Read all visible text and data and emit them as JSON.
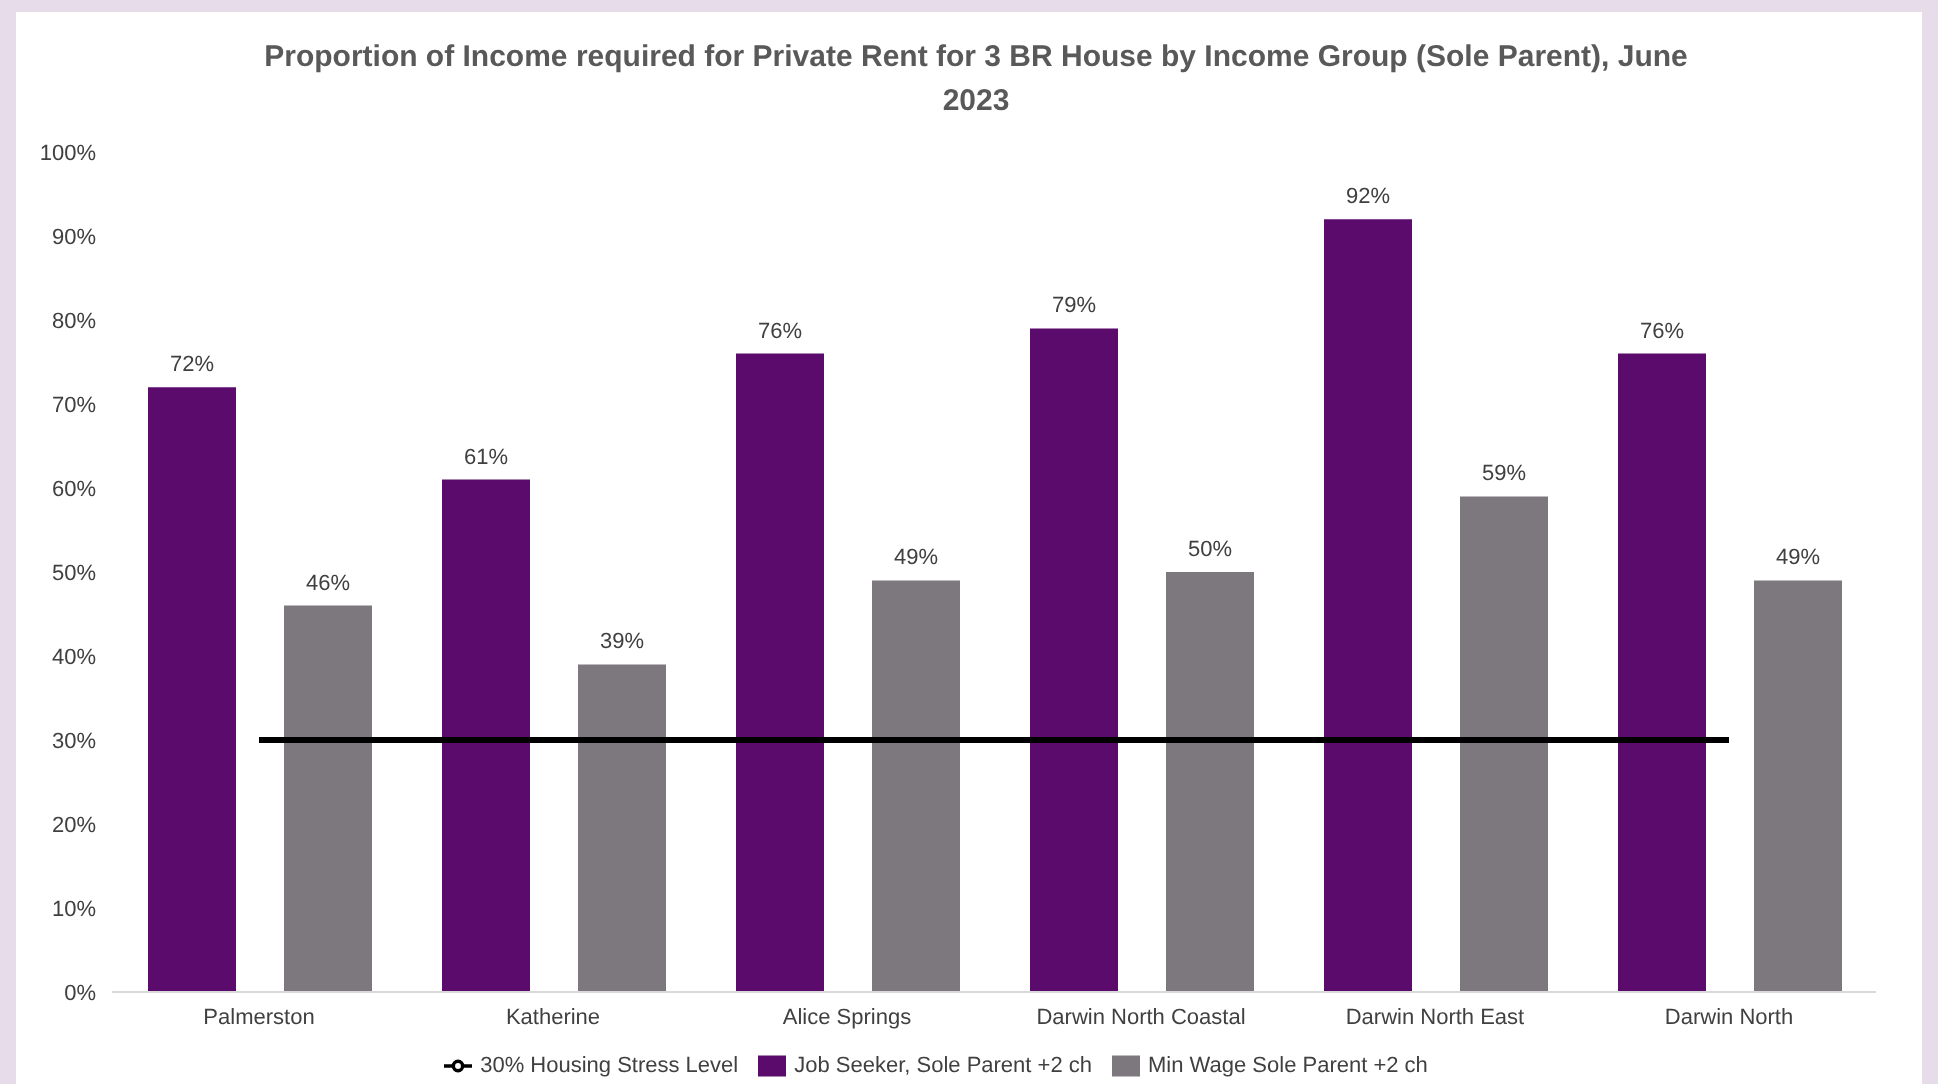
{
  "chart_data": {
    "type": "bar",
    "title": "Proportion of Income required for Private Rent for 3 BR House by Income Group (Sole Parent), June 2023",
    "categories": [
      "Palmerston",
      "Katherine",
      "Alice Springs",
      "Darwin North Coastal",
      "Darwin North East",
      "Darwin North"
    ],
    "series": [
      {
        "name": "Job Seeker, Sole Parent +2 ch",
        "color": "#5a0b6b",
        "values": [
          72,
          61,
          76,
          79,
          92,
          76
        ],
        "value_labels": [
          "72%",
          "61%",
          "76%",
          "79%",
          "92%",
          "76%"
        ]
      },
      {
        "name": "Min Wage Sole Parent +2 ch",
        "color": "#7c787d",
        "values": [
          46,
          39,
          49,
          50,
          59,
          49
        ],
        "value_labels": [
          "46%",
          "39%",
          "49%",
          "50%",
          "59%",
          "49%"
        ]
      },
      {
        "name": "30% Housing Stress Level",
        "color": "#000000",
        "type": "line",
        "marker": "none",
        "values": [
          30,
          30,
          30,
          30,
          30,
          30
        ]
      }
    ],
    "ylim": [
      0,
      100
    ],
    "yticks": [
      {
        "value": 0,
        "label": "0%"
      },
      {
        "value": 10,
        "label": "10%"
      },
      {
        "value": 20,
        "label": "20%"
      },
      {
        "value": 30,
        "label": "30%"
      },
      {
        "value": 40,
        "label": "40%"
      },
      {
        "value": 50,
        "label": "50%"
      },
      {
        "value": 60,
        "label": "60%"
      },
      {
        "value": 70,
        "label": "70%"
      },
      {
        "value": 80,
        "label": "80%"
      },
      {
        "value": 90,
        "label": "90%"
      },
      {
        "value": 100,
        "label": "100%"
      }
    ],
    "grid": false,
    "legend": "bottom"
  }
}
